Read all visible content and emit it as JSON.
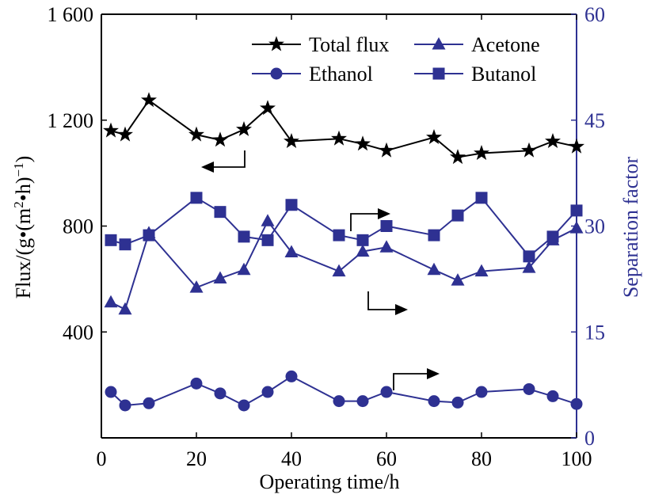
{
  "chart_data": {
    "type": "line",
    "xlabel": "Operating time/h",
    "ylabel_left": "Flux/(g•(m²•h)⁻¹)",
    "ylabel_right": "Separation factor",
    "xlim": [
      0,
      100
    ],
    "ylim_left": [
      0,
      1600
    ],
    "ylim_right": [
      0,
      60
    ],
    "x_ticks": [
      "0",
      "20",
      "40",
      "60",
      "80",
      "100"
    ],
    "y_ticks_left": [
      {
        "value": 400,
        "label": "400"
      },
      {
        "value": 800,
        "label": "800"
      },
      {
        "value": 1200,
        "label": "1 200"
      },
      {
        "value": 1600,
        "label": "1 600"
      }
    ],
    "y_ticks_right": [
      {
        "value": 0,
        "label": "0"
      },
      {
        "value": 15,
        "label": "15"
      },
      {
        "value": 30,
        "label": "30"
      },
      {
        "value": 45,
        "label": "45"
      },
      {
        "value": 60,
        "label": "60"
      }
    ],
    "legend_position": "top",
    "colors": {
      "total_flux": "#000000",
      "separation": "#2e3192"
    },
    "series": [
      {
        "name": "Total flux",
        "axis": "left",
        "marker": "star",
        "color": "#000000",
        "x": [
          2,
          5,
          10,
          20,
          25,
          30,
          35,
          40,
          50,
          55,
          60,
          70,
          75,
          80,
          90,
          95,
          100
        ],
        "y": [
          1160,
          1145,
          1275,
          1145,
          1125,
          1165,
          1245,
          1120,
          1130,
          1110,
          1085,
          1135,
          1060,
          1075,
          1085,
          1120,
          1100
        ]
      },
      {
        "name": "Acetone",
        "axis": "right",
        "marker": "triangle",
        "color": "#2e3192",
        "x": [
          2,
          5,
          10,
          20,
          25,
          30,
          35,
          40,
          50,
          55,
          60,
          70,
          75,
          80,
          90,
          95,
          100
        ],
        "y": [
          19.2,
          18.2,
          29.0,
          21.3,
          22.6,
          23.8,
          30.7,
          26.3,
          23.6,
          26.4,
          27.0,
          23.8,
          22.3,
          23.6,
          24.1,
          28.0,
          29.7
        ]
      },
      {
        "name": "Ethanol",
        "axis": "right",
        "marker": "circle",
        "color": "#2e3192",
        "x": [
          2,
          5,
          10,
          20,
          25,
          30,
          35,
          40,
          50,
          55,
          60,
          70,
          75,
          80,
          90,
          95,
          100
        ],
        "y": [
          6.5,
          4.6,
          4.9,
          7.7,
          6.3,
          4.6,
          6.5,
          8.7,
          5.2,
          5.2,
          6.5,
          5.2,
          5.0,
          6.5,
          6.9,
          5.9,
          4.8
        ]
      },
      {
        "name": "Butanol",
        "axis": "right",
        "marker": "square",
        "color": "#2e3192",
        "x": [
          2,
          5,
          10,
          20,
          25,
          30,
          35,
          40,
          50,
          55,
          60,
          70,
          75,
          80,
          90,
          95,
          100
        ],
        "y": [
          28.0,
          27.4,
          28.7,
          34.0,
          32.0,
          28.5,
          28.0,
          33.0,
          28.7,
          28.0,
          30.0,
          28.7,
          31.5,
          34.0,
          25.7,
          28.5,
          32.2
        ]
      }
    ]
  }
}
